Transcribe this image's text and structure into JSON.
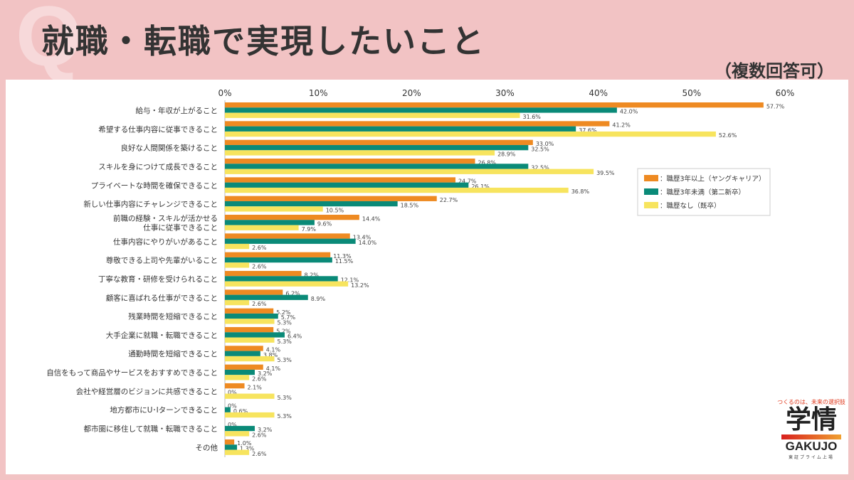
{
  "header": {
    "title": "就職・転職で実現したいこと",
    "note": "（複数回答可）",
    "watermark": "Q"
  },
  "logo": {
    "tagline": "つくるのは、未来の選択肢",
    "kanji": "学情",
    "name": "GAKUJO",
    "sub": "東証プライム上場"
  },
  "chart_data": {
    "type": "bar",
    "orientation": "horizontal",
    "title": "就職・転職で実現したいこと",
    "xlim": [
      0,
      60
    ],
    "xticks": [
      "0%",
      "10%",
      "20%",
      "30%",
      "40%",
      "50%",
      "60%"
    ],
    "legend_position": "right",
    "categories": [
      "給与・年収が上がること",
      "希望する仕事内容に従事できること",
      "良好な人間関係を築けること",
      "スキルを身につけて成長できること",
      "プライベートな時間を確保できること",
      "新しい仕事内容にチャレンジできること",
      "前職の経験・スキルが活かせる\n仕事に従事できること",
      "仕事内容にやりがいがあること",
      "尊敬できる上司や先輩がいること",
      "丁寧な教育・研修を受けられること",
      "顧客に喜ばれる仕事ができること",
      "残業時間を短縮できること",
      "大手企業に就職・転職できること",
      "通勤時間を短縮できること",
      "自信をもって商品やサービスをおすすめできること",
      "会社や経営層のビジョンに共感できること",
      "地方都市にU･Iターンできること",
      "都市圏に移住して就職・転職できること",
      "その他"
    ],
    "series": [
      {
        "name": "：職歴3年以上（ヤングキャリア）",
        "color": "#ee8a22",
        "values": [
          57.7,
          41.2,
          33.0,
          26.8,
          24.7,
          22.7,
          14.4,
          13.4,
          11.3,
          8.2,
          6.2,
          5.2,
          5.2,
          4.1,
          4.1,
          2.1,
          0,
          0,
          1.0
        ]
      },
      {
        "name": "：職歴3年未満（第二新卒）",
        "color": "#0a8a78",
        "values": [
          42.0,
          37.6,
          32.5,
          32.5,
          26.1,
          18.5,
          9.6,
          14.0,
          11.5,
          12.1,
          8.9,
          5.7,
          6.4,
          3.8,
          3.2,
          0,
          0.6,
          3.2,
          1.3
        ]
      },
      {
        "name": "：職歴なし（既卒）",
        "color": "#f7e45e",
        "values": [
          31.6,
          52.6,
          28.9,
          39.5,
          36.8,
          10.5,
          7.9,
          2.6,
          2.6,
          13.2,
          2.6,
          5.3,
          5.3,
          5.3,
          2.6,
          5.3,
          5.3,
          2.6,
          2.6
        ]
      }
    ]
  }
}
